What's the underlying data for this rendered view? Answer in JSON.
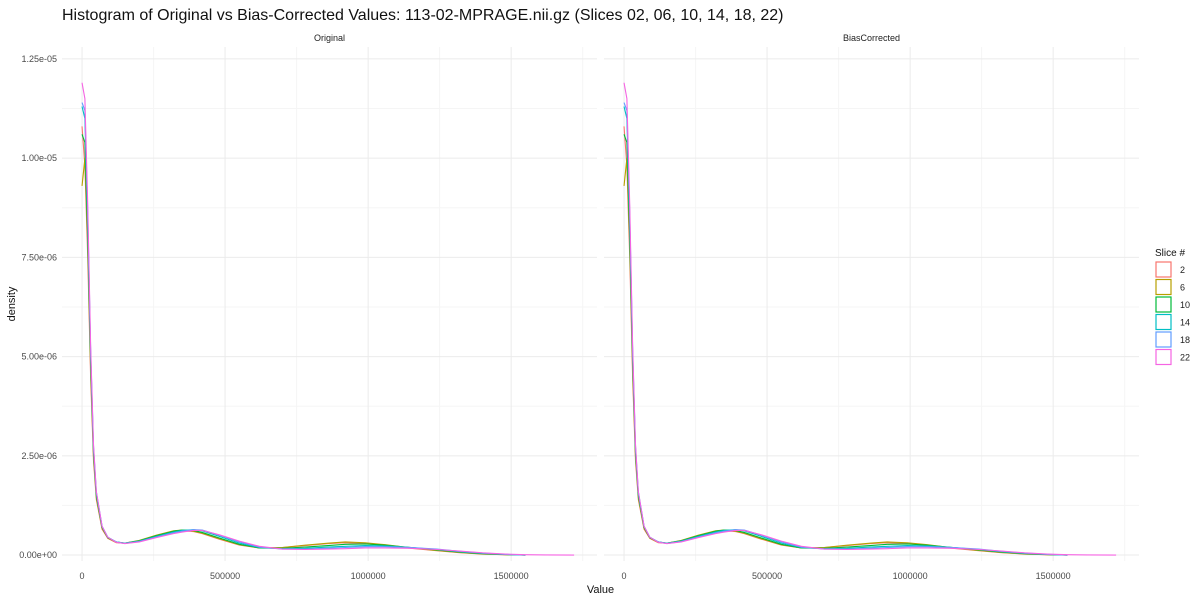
{
  "chart_data": {
    "type": "line",
    "title": "Histogram of Original vs Bias-Corrected Values: 113-02-MPRAGE.nii.gz (Slices 02, 06, 10, 14, 18, 22)",
    "xlabel": "Value",
    "ylabel": "density",
    "xlim": [
      -70000,
      1800000
    ],
    "ylim": [
      -1.5e-07,
      1.28e-05
    ],
    "x_ticks": [
      0,
      500000,
      1000000,
      1500000
    ],
    "x_tick_labels": [
      "0",
      "500000",
      "1000000",
      "1500000"
    ],
    "y_ticks": [
      0,
      2.5e-06,
      5e-06,
      7.5e-06,
      1e-05,
      1.25e-05
    ],
    "y_tick_labels": [
      "0.00e+00",
      "2.50e-06",
      "5.00e-06",
      "7.50e-06",
      "1.00e-05",
      "1.25e-05"
    ],
    "grid": true,
    "legend": {
      "title": "Slice #",
      "position": "right",
      "entries": [
        "2",
        "6",
        "10",
        "14",
        "18",
        "22"
      ]
    },
    "facets": [
      {
        "label": "Original",
        "series": [
          {
            "name": "2",
            "color": "#F8766D",
            "x": [
              0,
              10000,
              20000,
              30000,
              40000,
              50000,
              70000,
              90000,
              120000,
              150000,
              200000,
              260000,
              320000,
              350000,
              390000,
              420000,
              480000,
              550000,
              620000,
              700000,
              780000,
              860000,
              920000,
              990000,
              1060000,
              1150000,
              1240000,
              1320000,
              1400000,
              1480000,
              1550000
            ],
            "y": [
              1.08e-05,
              9.8e-06,
              7.5e-06,
              4.5e-06,
              2.4e-06,
              1.4e-06,
              6.5e-07,
              4.2e-07,
              3.1e-07,
              3e-07,
              3.6e-07,
              4.8e-07,
              5.9e-07,
              6.1e-07,
              5.9e-07,
              5.4e-07,
              4e-07,
              2.5e-07,
              1.8e-07,
              1.9e-07,
              2.4e-07,
              2.9e-07,
              3.1e-07,
              2.9e-07,
              2.4e-07,
              1.7e-07,
              1.1e-07,
              6e-08,
              2.5e-08,
              8e-09,
              0
            ]
          },
          {
            "name": "6",
            "color": "#B79F00",
            "x": [
              0,
              10000,
              20000,
              30000,
              40000,
              50000,
              70000,
              90000,
              120000,
              150000,
              200000,
              260000,
              320000,
              350000,
              390000,
              420000,
              480000,
              550000,
              620000,
              700000,
              780000,
              860000,
              920000,
              990000,
              1060000,
              1150000,
              1240000,
              1320000,
              1400000,
              1480000,
              1550000
            ],
            "y": [
              9.3e-06,
              1e-05,
              7.8e-06,
              4.7e-06,
              2.5e-06,
              1.45e-06,
              6.8e-07,
              4.3e-07,
              3.2e-07,
              3e-07,
              3.7e-07,
              5e-07,
              6.1e-07,
              6.3e-07,
              6e-07,
              5.5e-07,
              4.1e-07,
              2.6e-07,
              1.8e-07,
              1.9e-07,
              2.5e-07,
              3e-07,
              3.3e-07,
              3.1e-07,
              2.6e-07,
              1.8e-07,
              1.15e-07,
              6.5e-08,
              2.8e-08,
              9e-09,
              0
            ]
          },
          {
            "name": "10",
            "color": "#00BA38",
            "x": [
              0,
              10000,
              20000,
              30000,
              40000,
              50000,
              70000,
              90000,
              120000,
              150000,
              200000,
              260000,
              320000,
              350000,
              390000,
              420000,
              480000,
              550000,
              620000,
              700000,
              780000,
              860000,
              920000,
              990000,
              1060000,
              1150000,
              1240000,
              1320000,
              1400000,
              1480000,
              1550000
            ],
            "y": [
              1.06e-05,
              1.04e-05,
              8e-06,
              4.9e-06,
              2.6e-06,
              1.5e-06,
              7e-07,
              4.4e-07,
              3.3e-07,
              3e-07,
              3.6e-07,
              4.9e-07,
              6e-07,
              6.3e-07,
              6.2e-07,
              5.7e-07,
              4.3e-07,
              2.7e-07,
              1.8e-07,
              1.7e-07,
              2e-07,
              2.4e-07,
              2.7e-07,
              2.8e-07,
              2.5e-07,
              1.9e-07,
              1.3e-07,
              7.5e-08,
              3.5e-08,
              1.2e-08,
              0
            ]
          },
          {
            "name": "14",
            "color": "#00BFC4",
            "x": [
              0,
              10000,
              20000,
              30000,
              40000,
              50000,
              70000,
              90000,
              120000,
              150000,
              200000,
              260000,
              320000,
              350000,
              390000,
              420000,
              480000,
              550000,
              620000,
              700000,
              780000,
              860000,
              920000,
              990000,
              1060000,
              1150000,
              1240000,
              1320000,
              1400000,
              1480000,
              1550000
            ],
            "y": [
              1.13e-05,
              1.1e-05,
              8.4e-06,
              5.1e-06,
              2.7e-06,
              1.55e-06,
              7.2e-07,
              4.5e-07,
              3.3e-07,
              3e-07,
              3.5e-07,
              4.7e-07,
              5.8e-07,
              6.2e-07,
              6.4e-07,
              6.1e-07,
              4.7e-07,
              3e-07,
              1.9e-07,
              1.6e-07,
              1.7e-07,
              2e-07,
              2.2e-07,
              2.4e-07,
              2.3e-07,
              1.9e-07,
              1.4e-07,
              8.5e-08,
              4.2e-08,
              1.5e-08,
              0
            ]
          },
          {
            "name": "18",
            "color": "#619CFF",
            "x": [
              0,
              10000,
              20000,
              30000,
              40000,
              50000,
              70000,
              90000,
              120000,
              150000,
              200000,
              260000,
              320000,
              350000,
              390000,
              420000,
              480000,
              550000,
              620000,
              700000,
              780000,
              860000,
              920000,
              990000,
              1060000,
              1150000,
              1240000,
              1320000,
              1400000,
              1480000,
              1550000
            ],
            "y": [
              1.14e-05,
              1.12e-05,
              8.6e-06,
              5.2e-06,
              2.75e-06,
              1.6e-06,
              7.3e-07,
              4.5e-07,
              3.3e-07,
              2.9e-07,
              3.4e-07,
              4.5e-07,
              5.6e-07,
              6e-07,
              6.4e-07,
              6.3e-07,
              5e-07,
              3.3e-07,
              2e-07,
              1.5e-07,
              1.5e-07,
              1.7e-07,
              1.9e-07,
              2.1e-07,
              2.1e-07,
              1.9e-07,
              1.5e-07,
              9.5e-08,
              5e-08,
              1.8e-08,
              0
            ]
          },
          {
            "name": "22",
            "color": "#F564E3",
            "x": [
              0,
              10000,
              20000,
              30000,
              40000,
              50000,
              70000,
              90000,
              120000,
              150000,
              200000,
              260000,
              320000,
              350000,
              390000,
              420000,
              480000,
              550000,
              620000,
              700000,
              780000,
              860000,
              920000,
              990000,
              1060000,
              1150000,
              1240000,
              1320000,
              1400000,
              1480000,
              1550000,
              1620000,
              1720000
            ],
            "y": [
              1.19e-05,
              1.15e-05,
              8.8e-06,
              5.3e-06,
              2.8e-06,
              1.6e-06,
              7.3e-07,
              4.5e-07,
              3.2e-07,
              2.9e-07,
              3.3e-07,
              4.4e-07,
              5.4e-07,
              5.8e-07,
              6.2e-07,
              6.2e-07,
              5.1e-07,
              3.5e-07,
              2.2e-07,
              1.5e-07,
              1.4e-07,
              1.5e-07,
              1.6e-07,
              1.8e-07,
              1.8e-07,
              1.7e-07,
              1.4e-07,
              1e-07,
              5.5e-08,
              2.5e-08,
              1e-08,
              4e-09,
              0
            ]
          }
        ]
      },
      {
        "label": "BiasCorrected",
        "series": [
          {
            "name": "2",
            "color": "#F8766D",
            "x": [
              0,
              10000,
              20000,
              30000,
              40000,
              50000,
              70000,
              90000,
              120000,
              150000,
              200000,
              260000,
              320000,
              350000,
              390000,
              420000,
              480000,
              550000,
              620000,
              700000,
              780000,
              860000,
              920000,
              990000,
              1060000,
              1150000,
              1240000,
              1320000,
              1400000,
              1480000,
              1550000
            ],
            "y": [
              1.08e-05,
              9.8e-06,
              7.5e-06,
              4.5e-06,
              2.4e-06,
              1.4e-06,
              6.5e-07,
              4.2e-07,
              3.1e-07,
              3e-07,
              3.6e-07,
              4.8e-07,
              5.9e-07,
              6.1e-07,
              5.9e-07,
              5.4e-07,
              4e-07,
              2.5e-07,
              1.8e-07,
              1.9e-07,
              2.4e-07,
              2.9e-07,
              3.1e-07,
              2.9e-07,
              2.4e-07,
              1.7e-07,
              1.1e-07,
              6e-08,
              2.5e-08,
              8e-09,
              0
            ]
          },
          {
            "name": "6",
            "color": "#B79F00",
            "x": [
              0,
              10000,
              20000,
              30000,
              40000,
              50000,
              70000,
              90000,
              120000,
              150000,
              200000,
              260000,
              320000,
              350000,
              390000,
              420000,
              480000,
              550000,
              620000,
              700000,
              780000,
              860000,
              920000,
              990000,
              1060000,
              1150000,
              1240000,
              1320000,
              1400000,
              1480000,
              1550000
            ],
            "y": [
              9.3e-06,
              1e-05,
              7.8e-06,
              4.7e-06,
              2.5e-06,
              1.45e-06,
              6.8e-07,
              4.3e-07,
              3.2e-07,
              3e-07,
              3.7e-07,
              5e-07,
              6.1e-07,
              6.3e-07,
              6e-07,
              5.5e-07,
              4.1e-07,
              2.6e-07,
              1.8e-07,
              1.9e-07,
              2.5e-07,
              3e-07,
              3.3e-07,
              3.1e-07,
              2.6e-07,
              1.8e-07,
              1.15e-07,
              6.5e-08,
              2.8e-08,
              9e-09,
              0
            ]
          },
          {
            "name": "10",
            "color": "#00BA38",
            "x": [
              0,
              10000,
              20000,
              30000,
              40000,
              50000,
              70000,
              90000,
              120000,
              150000,
              200000,
              260000,
              320000,
              350000,
              390000,
              420000,
              480000,
              550000,
              620000,
              700000,
              780000,
              860000,
              920000,
              990000,
              1060000,
              1150000,
              1240000,
              1320000,
              1400000,
              1480000,
              1550000
            ],
            "y": [
              1.06e-05,
              1.04e-05,
              8e-06,
              4.9e-06,
              2.6e-06,
              1.5e-06,
              7e-07,
              4.4e-07,
              3.3e-07,
              3e-07,
              3.6e-07,
              4.9e-07,
              6e-07,
              6.3e-07,
              6.2e-07,
              5.7e-07,
              4.3e-07,
              2.7e-07,
              1.8e-07,
              1.7e-07,
              2e-07,
              2.4e-07,
              2.7e-07,
              2.8e-07,
              2.5e-07,
              1.9e-07,
              1.3e-07,
              7.5e-08,
              3.5e-08,
              1.2e-08,
              0
            ]
          },
          {
            "name": "14",
            "color": "#00BFC4",
            "x": [
              0,
              10000,
              20000,
              30000,
              40000,
              50000,
              70000,
              90000,
              120000,
              150000,
              200000,
              260000,
              320000,
              350000,
              390000,
              420000,
              480000,
              550000,
              620000,
              700000,
              780000,
              860000,
              920000,
              990000,
              1060000,
              1150000,
              1240000,
              1320000,
              1400000,
              1480000,
              1550000
            ],
            "y": [
              1.13e-05,
              1.1e-05,
              8.4e-06,
              5.1e-06,
              2.7e-06,
              1.55e-06,
              7.2e-07,
              4.5e-07,
              3.3e-07,
              3e-07,
              3.5e-07,
              4.7e-07,
              5.8e-07,
              6.2e-07,
              6.4e-07,
              6.1e-07,
              4.7e-07,
              3e-07,
              1.9e-07,
              1.6e-07,
              1.7e-07,
              2e-07,
              2.2e-07,
              2.4e-07,
              2.3e-07,
              1.9e-07,
              1.4e-07,
              8.5e-08,
              4.2e-08,
              1.5e-08,
              0
            ]
          },
          {
            "name": "18",
            "color": "#619CFF",
            "x": [
              0,
              10000,
              20000,
              30000,
              40000,
              50000,
              70000,
              90000,
              120000,
              150000,
              200000,
              260000,
              320000,
              350000,
              390000,
              420000,
              480000,
              550000,
              620000,
              700000,
              780000,
              860000,
              920000,
              990000,
              1060000,
              1150000,
              1240000,
              1320000,
              1400000,
              1480000,
              1550000
            ],
            "y": [
              1.14e-05,
              1.12e-05,
              8.6e-06,
              5.2e-06,
              2.75e-06,
              1.6e-06,
              7.3e-07,
              4.5e-07,
              3.3e-07,
              2.9e-07,
              3.4e-07,
              4.5e-07,
              5.6e-07,
              6e-07,
              6.4e-07,
              6.3e-07,
              5e-07,
              3.3e-07,
              2e-07,
              1.5e-07,
              1.5e-07,
              1.7e-07,
              1.9e-07,
              2.1e-07,
              2.1e-07,
              1.9e-07,
              1.5e-07,
              9.5e-08,
              5e-08,
              1.8e-08,
              0
            ]
          },
          {
            "name": "22",
            "color": "#F564E3",
            "x": [
              0,
              10000,
              20000,
              30000,
              40000,
              50000,
              70000,
              90000,
              120000,
              150000,
              200000,
              260000,
              320000,
              350000,
              390000,
              420000,
              480000,
              550000,
              620000,
              700000,
              780000,
              860000,
              920000,
              990000,
              1060000,
              1150000,
              1240000,
              1320000,
              1400000,
              1480000,
              1550000,
              1620000,
              1720000
            ],
            "y": [
              1.19e-05,
              1.15e-05,
              8.8e-06,
              5.3e-06,
              2.8e-06,
              1.6e-06,
              7.3e-07,
              4.5e-07,
              3.2e-07,
              2.9e-07,
              3.3e-07,
              4.4e-07,
              5.4e-07,
              5.8e-07,
              6.2e-07,
              6.2e-07,
              5.1e-07,
              3.5e-07,
              2.2e-07,
              1.5e-07,
              1.4e-07,
              1.5e-07,
              1.6e-07,
              1.8e-07,
              1.8e-07,
              1.7e-07,
              1.4e-07,
              1e-07,
              5.5e-08,
              2.5e-08,
              1e-08,
              4e-09,
              0
            ]
          }
        ]
      }
    ]
  }
}
